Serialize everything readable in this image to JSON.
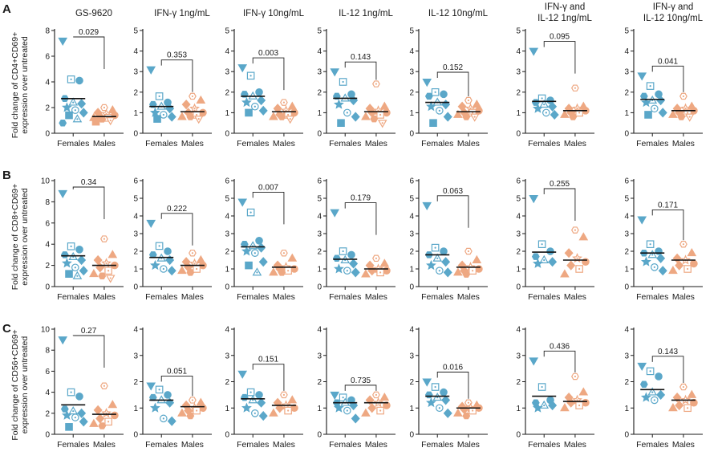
{
  "colors": {
    "females": "#5aa7c9",
    "males": "#eea882",
    "axis": "#1a1a1a"
  },
  "rows": [
    {
      "letter": "A",
      "ylabel_line1": "Fold change of CD4+CD69+",
      "ylabel_line2": "expression over untreated"
    },
    {
      "letter": "B",
      "ylabel_line1": "Fold change of CD8+CD69+",
      "ylabel_line2": "expression over untreated"
    },
    {
      "letter": "C",
      "ylabel_line1": "Fold change of CD56+CD69+",
      "ylabel_line2": "expression over untreated"
    }
  ],
  "chart_data": [
    {
      "row": 0,
      "col": 0,
      "type": "scatter",
      "title": [
        "GS-9620"
      ],
      "categories": [
        "Females",
        "Males"
      ],
      "ylim": [
        0,
        8
      ],
      "yticks": [
        0,
        2,
        4,
        6,
        8
      ],
      "p": "0.029",
      "series": [
        {
          "name": "Females",
          "mean": 2.7,
          "values": [
            7.2,
            4.2,
            4.1,
            2.7,
            2.4,
            2.3,
            2.0,
            1.8,
            1.6,
            1.4,
            1.1,
            0.8
          ]
        },
        {
          "name": "Males",
          "mean": 1.3,
          "values": [
            2.0,
            1.8,
            1.6,
            1.5,
            1.4,
            1.3,
            1.2,
            1.2,
            1.1,
            1.0,
            0.9
          ]
        }
      ]
    },
    {
      "row": 0,
      "col": 1,
      "type": "scatter",
      "title": [
        "IFN-γ 1ng/mL"
      ],
      "categories": [
        "Females",
        "Males"
      ],
      "ylim": [
        0,
        5
      ],
      "yticks": [
        0,
        1,
        2,
        3,
        4,
        5
      ],
      "p": "0.353",
      "series": [
        {
          "name": "Females",
          "mean": 1.3,
          "values": [
            3.1,
            1.8,
            1.5,
            1.4,
            1.3,
            1.2,
            1.0,
            0.9,
            0.8,
            0.7
          ]
        },
        {
          "name": "Males",
          "mean": 1.05,
          "values": [
            1.8,
            1.6,
            1.4,
            1.2,
            1.0,
            1.0,
            0.9,
            0.8,
            0.8,
            0.7
          ]
        }
      ]
    },
    {
      "row": 0,
      "col": 2,
      "type": "scatter",
      "title": [
        "IFN-γ 10ng/mL"
      ],
      "categories": [
        "Females",
        "Males"
      ],
      "ylim": [
        0,
        5
      ],
      "yticks": [
        0,
        1,
        2,
        3,
        4,
        5
      ],
      "p": "0.003",
      "series": [
        {
          "name": "Females",
          "mean": 1.8,
          "values": [
            3.2,
            2.8,
            2.0,
            1.9,
            1.8,
            1.6,
            1.5,
            1.3,
            1.1,
            1.0
          ]
        },
        {
          "name": "Males",
          "mean": 1.05,
          "values": [
            1.5,
            1.3,
            1.2,
            1.1,
            1.0,
            0.9,
            0.9,
            0.8,
            0.8,
            0.7
          ]
        }
      ]
    },
    {
      "row": 0,
      "col": 3,
      "type": "scatter",
      "title": [
        "IL-12 1ng/mL"
      ],
      "categories": [
        "Females",
        "Males"
      ],
      "ylim": [
        0,
        5
      ],
      "yticks": [
        0,
        1,
        2,
        3,
        4,
        5
      ],
      "p": "0.143",
      "series": [
        {
          "name": "Females",
          "mean": 1.7,
          "values": [
            3.0,
            2.5,
            1.9,
            1.8,
            1.7,
            1.6,
            1.4,
            1.0,
            0.8,
            0.5
          ]
        },
        {
          "name": "Males",
          "mean": 1.05,
          "values": [
            2.4,
            1.3,
            1.2,
            1.1,
            1.0,
            1.0,
            0.9,
            0.8,
            0.7,
            0.5
          ]
        }
      ]
    },
    {
      "row": 0,
      "col": 4,
      "type": "scatter",
      "title": [
        "IL-12 10ng/mL"
      ],
      "categories": [
        "Females",
        "Males"
      ],
      "ylim": [
        0,
        5
      ],
      "yticks": [
        0,
        1,
        2,
        3,
        4,
        5
      ],
      "p": "0.152",
      "series": [
        {
          "name": "Females",
          "mean": 1.5,
          "values": [
            2.5,
            2.0,
            1.9,
            1.8,
            1.5,
            1.4,
            1.3,
            1.1,
            0.8,
            0.5
          ]
        },
        {
          "name": "Males",
          "mean": 1.05,
          "values": [
            1.6,
            1.4,
            1.3,
            1.2,
            1.1,
            1.0,
            1.0,
            0.9,
            0.8,
            0.8
          ]
        }
      ]
    },
    {
      "row": 0,
      "col": 5,
      "type": "scatter",
      "title": [
        "IFN-γ and",
        "IL-12 1ng/mL"
      ],
      "categories": [
        "Females",
        "Males"
      ],
      "ylim": [
        0,
        5
      ],
      "yticks": [
        0,
        1,
        2,
        3,
        4,
        5
      ],
      "p": "0.095",
      "series": [
        {
          "name": "Females",
          "mean": 1.55,
          "values": [
            4.0,
            1.7,
            1.6,
            1.5,
            1.4,
            1.3,
            1.2,
            1.0,
            0.9
          ]
        },
        {
          "name": "Males",
          "mean": 1.1,
          "values": [
            2.2,
            1.3,
            1.2,
            1.2,
            1.1,
            1.0,
            1.0,
            0.9,
            0.8
          ]
        }
      ]
    },
    {
      "row": 0,
      "col": 6,
      "type": "scatter",
      "title": [
        "IFN-γ and",
        "IL-12 10ng/mL"
      ],
      "categories": [
        "Females",
        "Males"
      ],
      "ylim": [
        0,
        5
      ],
      "yticks": [
        0,
        1,
        2,
        3,
        4,
        5
      ],
      "p": "0.041",
      "series": [
        {
          "name": "Females",
          "mean": 1.65,
          "values": [
            2.8,
            2.3,
            1.9,
            1.8,
            1.6,
            1.6,
            1.5,
            1.2,
            1.0,
            0.9
          ]
        },
        {
          "name": "Males",
          "mean": 1.1,
          "values": [
            1.8,
            1.3,
            1.2,
            1.2,
            1.1,
            1.0,
            1.0,
            0.9,
            0.8,
            0.8
          ]
        }
      ]
    },
    {
      "row": 1,
      "col": 0,
      "type": "scatter",
      "title": [],
      "categories": [
        "Females",
        "Males"
      ],
      "ylim": [
        0,
        10
      ],
      "yticks": [
        0,
        2,
        4,
        6,
        8,
        10
      ],
      "p": "0.34",
      "series": [
        {
          "name": "Females",
          "mean": 2.9,
          "values": [
            8.8,
            3.8,
            3.5,
            3.0,
            2.8,
            2.5,
            2.2,
            1.8,
            1.5,
            1.2,
            1.0
          ]
        },
        {
          "name": "Males",
          "mean": 2.0,
          "values": [
            4.5,
            3.0,
            2.5,
            2.2,
            2.0,
            1.8,
            1.5,
            1.2,
            1.0,
            0.8
          ]
        }
      ]
    },
    {
      "row": 1,
      "col": 1,
      "type": "scatter",
      "title": [],
      "categories": [
        "Females",
        "Males"
      ],
      "ylim": [
        0,
        6
      ],
      "yticks": [
        0,
        1,
        2,
        3,
        4,
        5,
        6
      ],
      "p": "0.222",
      "series": [
        {
          "name": "Females",
          "mean": 1.65,
          "values": [
            3.6,
            2.3,
            2.0,
            1.8,
            1.6,
            1.5,
            1.2,
            1.0,
            0.9
          ]
        },
        {
          "name": "Males",
          "mean": 1.2,
          "values": [
            1.9,
            1.5,
            1.4,
            1.3,
            1.2,
            1.1,
            1.0,
            0.9,
            0.8
          ]
        }
      ]
    },
    {
      "row": 1,
      "col": 2,
      "type": "scatter",
      "title": [],
      "categories": [
        "Females",
        "Males"
      ],
      "ylim": [
        0,
        6
      ],
      "yticks": [
        0,
        1,
        2,
        3,
        4,
        5,
        6
      ],
      "p": "0.007",
      "series": [
        {
          "name": "Females",
          "mean": 2.25,
          "values": [
            4.8,
            4.2,
            2.6,
            2.4,
            2.3,
            2.2,
            2.0,
            1.9,
            1.4,
            1.2,
            0.8
          ]
        },
        {
          "name": "Males",
          "mean": 1.1,
          "values": [
            1.9,
            1.6,
            1.2,
            1.1,
            1.0,
            1.0,
            0.9,
            0.8,
            0.8
          ]
        }
      ]
    },
    {
      "row": 1,
      "col": 3,
      "type": "scatter",
      "title": [],
      "categories": [
        "Females",
        "Males"
      ],
      "ylim": [
        0,
        6
      ],
      "yticks": [
        0,
        1,
        2,
        3,
        4,
        5,
        6
      ],
      "p": "0.179",
      "series": [
        {
          "name": "Females",
          "mean": 1.55,
          "values": [
            4.2,
            2.0,
            1.8,
            1.6,
            1.5,
            1.3,
            1.0,
            0.9,
            0.8
          ]
        },
        {
          "name": "Males",
          "mean": 1.0,
          "values": [
            1.6,
            1.3,
            1.2,
            1.0,
            0.9,
            0.9,
            0.8,
            0.7
          ]
        }
      ]
    },
    {
      "row": 1,
      "col": 4,
      "type": "scatter",
      "title": [],
      "categories": [
        "Females",
        "Males"
      ],
      "ylim": [
        0,
        6
      ],
      "yticks": [
        0,
        1,
        2,
        3,
        4,
        5,
        6
      ],
      "p": "0.063",
      "series": [
        {
          "name": "Females",
          "mean": 1.8,
          "values": [
            4.6,
            2.2,
            2.0,
            1.8,
            1.6,
            1.4,
            1.2,
            0.9,
            0.8
          ]
        },
        {
          "name": "Males",
          "mean": 1.1,
          "values": [
            2.0,
            1.5,
            1.2,
            1.1,
            1.0,
            0.9,
            0.9,
            0.8,
            0.7
          ]
        }
      ]
    },
    {
      "row": 1,
      "col": 5,
      "type": "scatter",
      "title": [],
      "categories": [
        "Females",
        "Males"
      ],
      "ylim": [
        0,
        6
      ],
      "yticks": [
        0,
        1,
        2,
        3,
        4,
        5,
        6
      ],
      "p": "0.255",
      "series": [
        {
          "name": "Females",
          "mean": 1.95,
          "values": [
            5.0,
            2.4,
            2.0,
            1.7,
            1.5,
            1.4,
            1.3
          ]
        },
        {
          "name": "Males",
          "mean": 1.5,
          "values": [
            3.2,
            2.8,
            1.9,
            1.6,
            1.4,
            1.2,
            1.0,
            0.7
          ]
        }
      ]
    },
    {
      "row": 1,
      "col": 6,
      "type": "scatter",
      "title": [],
      "categories": [
        "Females",
        "Males"
      ],
      "ylim": [
        0,
        6
      ],
      "yticks": [
        0,
        1,
        2,
        3,
        4,
        5,
        6
      ],
      "p": "0.171",
      "series": [
        {
          "name": "Females",
          "mean": 1.9,
          "values": [
            3.8,
            2.4,
            2.0,
            1.9,
            1.8,
            1.6,
            1.4,
            1.1,
            0.9
          ]
        },
        {
          "name": "Males",
          "mean": 1.5,
          "values": [
            2.4,
            1.9,
            1.6,
            1.5,
            1.3,
            1.2,
            1.0,
            0.9
          ]
        }
      ]
    },
    {
      "row": 2,
      "col": 0,
      "type": "scatter",
      "title": [],
      "categories": [
        "Females",
        "Males"
      ],
      "ylim": [
        0,
        10
      ],
      "yticks": [
        0,
        2,
        4,
        6,
        8,
        10
      ],
      "p": "0.27",
      "series": [
        {
          "name": "Females",
          "mean": 2.8,
          "values": [
            9.0,
            4.0,
            3.6,
            2.4,
            2.2,
            2.0,
            1.8,
            1.6,
            1.2,
            0.7
          ]
        },
        {
          "name": "Males",
          "mean": 1.9,
          "values": [
            4.6,
            2.8,
            2.3,
            2.0,
            1.8,
            1.5,
            1.2,
            1.0,
            0.8
          ]
        }
      ]
    },
    {
      "row": 2,
      "col": 1,
      "type": "scatter",
      "title": [],
      "categories": [
        "Females",
        "Males"
      ],
      "ylim": [
        0,
        4
      ],
      "yticks": [
        0,
        1,
        2,
        3,
        4
      ],
      "p": "0.051",
      "series": [
        {
          "name": "Females",
          "mean": 1.3,
          "values": [
            1.85,
            1.7,
            1.5,
            1.4,
            1.3,
            1.2,
            1.0,
            0.6,
            0.5
          ]
        },
        {
          "name": "Males",
          "mean": 1.05,
          "values": [
            1.3,
            1.2,
            1.1,
            1.0,
            1.0,
            0.9,
            0.9,
            0.8,
            0.7
          ]
        }
      ]
    },
    {
      "row": 2,
      "col": 2,
      "type": "scatter",
      "title": [],
      "categories": [
        "Females",
        "Males"
      ],
      "ylim": [
        0,
        4
      ],
      "yticks": [
        0,
        1,
        2,
        3,
        4
      ],
      "p": "0.151",
      "series": [
        {
          "name": "Females",
          "mean": 1.35,
          "values": [
            2.3,
            1.6,
            1.5,
            1.4,
            1.3,
            1.2,
            1.0,
            0.8,
            0.7
          ]
        },
        {
          "name": "Males",
          "mean": 1.1,
          "values": [
            1.5,
            1.3,
            1.2,
            1.1,
            1.0,
            1.0,
            0.9,
            0.8
          ]
        }
      ]
    },
    {
      "row": 2,
      "col": 3,
      "type": "scatter",
      "title": [],
      "categories": [
        "Females",
        "Males"
      ],
      "ylim": [
        0,
        4
      ],
      "yticks": [
        0,
        1,
        2,
        3,
        4
      ],
      "p": "0.735",
      "series": [
        {
          "name": "Females",
          "mean": 1.2,
          "values": [
            1.5,
            1.4,
            1.3,
            1.2,
            1.2,
            1.1,
            1.0,
            0.9,
            0.6
          ]
        },
        {
          "name": "Males",
          "mean": 1.2,
          "values": [
            1.5,
            1.4,
            1.3,
            1.2,
            1.1,
            1.0,
            0.9,
            0.8
          ]
        }
      ]
    },
    {
      "row": 2,
      "col": 4,
      "type": "scatter",
      "title": [],
      "categories": [
        "Females",
        "Males"
      ],
      "ylim": [
        0,
        4
      ],
      "yticks": [
        0,
        1,
        2,
        3,
        4
      ],
      "p": "0.016",
      "series": [
        {
          "name": "Females",
          "mean": 1.45,
          "values": [
            2.0,
            1.8,
            1.6,
            1.5,
            1.4,
            1.3,
            1.2,
            1.0,
            0.8
          ]
        },
        {
          "name": "Males",
          "mean": 1.0,
          "values": [
            1.2,
            1.1,
            1.05,
            1.0,
            1.0,
            0.95,
            0.9,
            0.8,
            0.7
          ]
        }
      ]
    },
    {
      "row": 2,
      "col": 5,
      "type": "scatter",
      "title": [],
      "categories": [
        "Females",
        "Males"
      ],
      "ylim": [
        0,
        4
      ],
      "yticks": [
        0,
        1,
        2,
        3,
        4
      ],
      "p": "0.436",
      "series": [
        {
          "name": "Females",
          "mean": 1.45,
          "values": [
            2.8,
            1.8,
            1.3,
            1.2,
            1.1,
            1.1,
            1.0
          ]
        },
        {
          "name": "Males",
          "mean": 1.25,
          "values": [
            2.2,
            1.6,
            1.4,
            1.3,
            1.2,
            1.2,
            1.1,
            1.0
          ]
        }
      ]
    },
    {
      "row": 2,
      "col": 6,
      "type": "scatter",
      "title": [],
      "categories": [
        "Females",
        "Males"
      ],
      "ylim": [
        0,
        4
      ],
      "yticks": [
        0,
        1,
        2,
        3,
        4
      ],
      "p": "0.143",
      "series": [
        {
          "name": "Females",
          "mean": 1.7,
          "values": [
            2.6,
            2.4,
            2.2,
            1.9,
            1.6,
            1.5,
            1.4,
            1.3
          ]
        },
        {
          "name": "Males",
          "mean": 1.3,
          "values": [
            1.8,
            1.5,
            1.4,
            1.3,
            1.2,
            1.1,
            1.0,
            1.0
          ]
        }
      ]
    }
  ]
}
